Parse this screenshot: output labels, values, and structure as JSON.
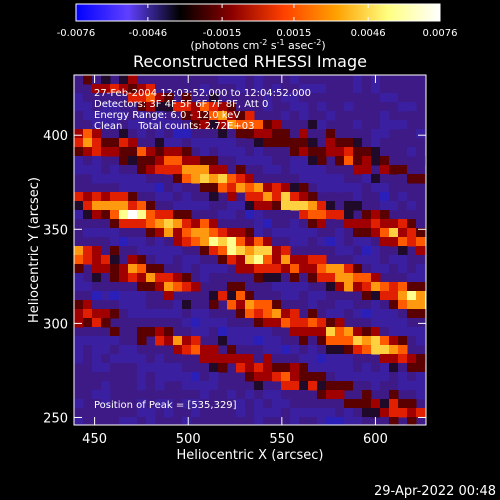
{
  "chart_data": {
    "type": "heatmap",
    "title": "Reconstructed RHESSI Image",
    "xlabel": "Heliocentric X (arcsec)",
    "ylabel": "Heliocentric Y (arcsec)",
    "xlim": [
      439,
      627
    ],
    "ylim": [
      246,
      432
    ],
    "x_ticks": [
      450,
      500,
      550,
      600
    ],
    "y_ticks": [
      250,
      300,
      350,
      400
    ],
    "colorbar": {
      "range": [
        -0.0076,
        0.0076
      ],
      "tick_labels": [
        "-0.0076",
        "-0.0046",
        "-0.0015",
        "0.0015",
        "0.0046",
        "0.0076"
      ],
      "unit_text": "(photons cm",
      "unit_exp1": "-2",
      "unit_text2": " s",
      "unit_exp2": "-1",
      "unit_text3": " asec",
      "unit_exp3": "-2",
      "unit_text4": ")",
      "stops": [
        "#0000ff",
        "#6040ff",
        "#000000",
        "#8b0000",
        "#ff4000",
        "#ffa000",
        "#ffff80",
        "#ffffff"
      ]
    },
    "annotations": [
      "27-Feb-2004 12:03:52.000 to 12:04:52.000",
      "Detectors: 3F 4F 5F 6F 7F 8F, Att 0",
      "Energy Range: 6.0 - 12.0 keV",
      "Clean     Total counts: 2.72E+03"
    ],
    "peak_label": "Position of Peak = [535,329]",
    "peak": [
      535,
      329
    ],
    "bands": [
      {
        "slope": -0.3,
        "y0": 404,
        "weight": 0.62
      },
      {
        "slope": -0.3,
        "y0": 371,
        "weight": 0.85
      },
      {
        "slope": -0.3,
        "y0": 339,
        "weight": 0.98
      },
      {
        "slope": -0.3,
        "y0": 308,
        "weight": 0.78
      },
      {
        "slope": -0.3,
        "y0": 277,
        "weight": 0.55
      }
    ],
    "background_color": "#3d1a85"
  },
  "footer": {
    "timestamp": "29-Apr-2022 00:48"
  }
}
